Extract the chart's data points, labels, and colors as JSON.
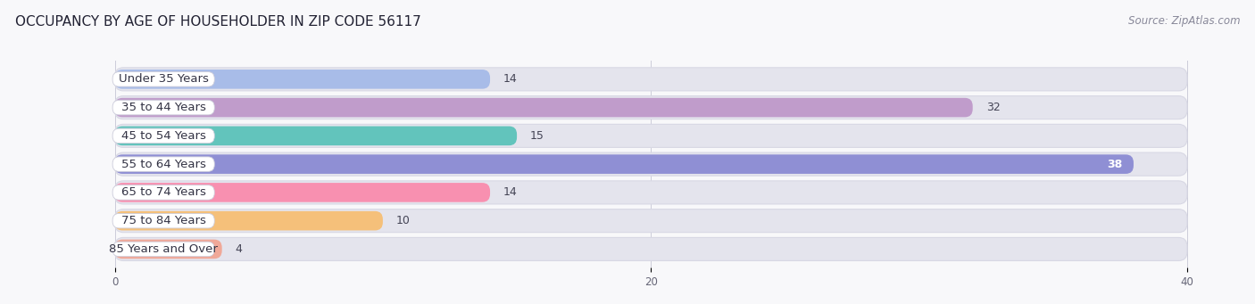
{
  "title": "OCCUPANCY BY AGE OF HOUSEHOLDER IN ZIP CODE 56117",
  "source": "Source: ZipAtlas.com",
  "categories": [
    "Under 35 Years",
    "35 to 44 Years",
    "45 to 54 Years",
    "55 to 64 Years",
    "65 to 74 Years",
    "75 to 84 Years",
    "85 Years and Over"
  ],
  "values": [
    14,
    32,
    15,
    38,
    14,
    10,
    4
  ],
  "bar_colors": [
    "#a8bce8",
    "#c09ccb",
    "#62c4bc",
    "#8f8fd4",
    "#f890b0",
    "#f5c07a",
    "#f0a898"
  ],
  "bg_color": "#f8f8fa",
  "bar_bg_color": "#e4e4ed",
  "xlim_max": 40,
  "xticks": [
    0,
    20,
    40
  ],
  "title_fontsize": 11,
  "label_fontsize": 9.5,
  "value_fontsize": 9,
  "source_fontsize": 8.5,
  "value_inside_threshold": 35
}
